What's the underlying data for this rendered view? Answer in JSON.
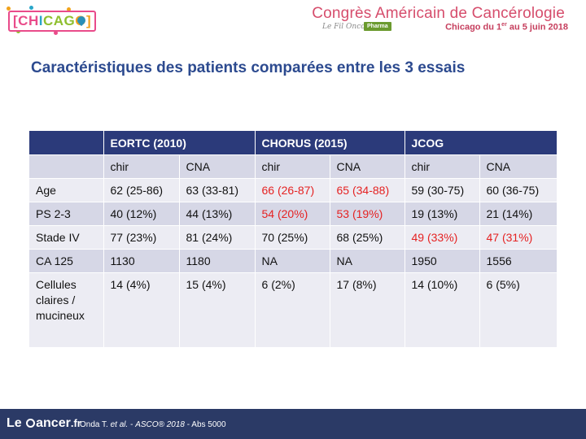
{
  "header": {
    "logo_text_1": "[CH",
    "logo_text_2": "I",
    "logo_text_3": "CAG",
    "logo_text_4": "O]",
    "congress_title": "Congrès Américain de Cancérologie",
    "partner_text": "Le Fil Onco",
    "pharma_badge": "Pharma",
    "dates_prefix": "Chicago du 1",
    "dates_sup": "er",
    "dates_suffix": " au 5 juin 2018"
  },
  "title": "Caractéristiques des patients comparées entre les 3 essais",
  "table": {
    "trials": [
      "EORTC (2010)",
      "CHORUS (2015)",
      "JCOG"
    ],
    "subheaders": [
      "chir",
      "CNA",
      "chir",
      "CNA",
      "chir",
      "CNA"
    ],
    "rows": [
      {
        "label": "Age",
        "cells": [
          "62 (25-86)",
          "63 (33-81)",
          "66 (26-87)",
          "65 (34-88)",
          "59 (30-75)",
          "60 (36-75)"
        ]
      },
      {
        "label": "PS 2-3",
        "cells": [
          "40 (12%)",
          "44 (13%)",
          "54 (20%)",
          "53 (19%)",
          "19 (13%)",
          "21 (14%)"
        ]
      },
      {
        "label": "Stade IV",
        "cells": [
          "77 (23%)",
          "81 (24%)",
          "70 (25%)",
          "68 (25%)",
          "49 (33%)",
          "47 (31%)"
        ]
      },
      {
        "label": "CA 125",
        "cells": [
          "1130",
          "1180",
          "NA",
          "NA",
          "1950",
          "1556"
        ]
      },
      {
        "label_lines": [
          "Cellules",
          "claires /",
          "mucineux"
        ],
        "cells": [
          "14 (4%)",
          "15 (4%)",
          "6 (2%)",
          "17 (8%)",
          "14 (10%)",
          "6 (5%)"
        ]
      }
    ],
    "highlight_color": "#e52222",
    "header_color": "#2b3a7a"
  },
  "footer": {
    "brand_le": "Le",
    "brand_ancer": "ancer",
    "brand_fr": ".fr",
    "cite_author": "Onda T. ",
    "cite_etal": "et al.",
    "cite_dash": " - ",
    "cite_conf": "ASCO® 2018",
    "cite_abs": " - Abs 5000"
  }
}
